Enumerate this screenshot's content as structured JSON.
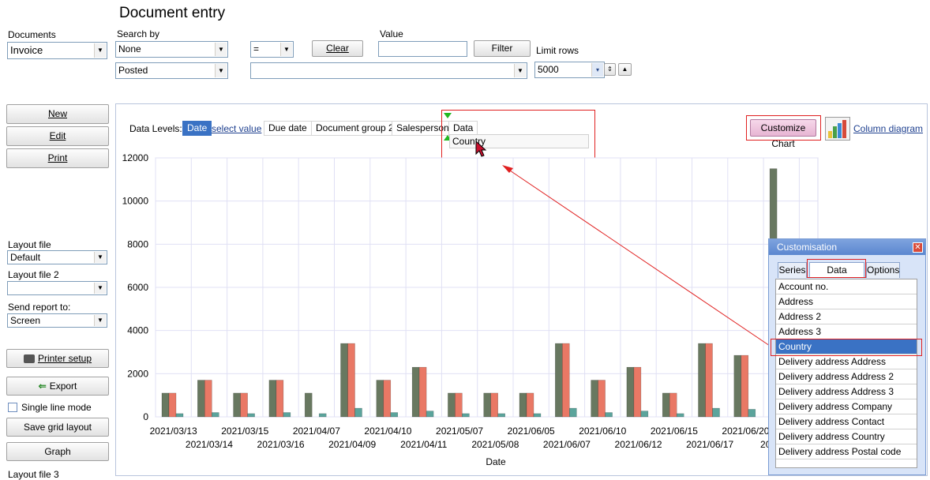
{
  "page_title": "Document entry",
  "documents": {
    "label": "Documents",
    "value": "Invoice"
  },
  "search": {
    "label": "Search by",
    "field": "None",
    "operator": "=",
    "clear_label": "Clear",
    "value_label": "Value",
    "value": "",
    "filter_label": "Filter",
    "status": "Posted",
    "second_value": "",
    "limit_label": "Limit rows",
    "limit_value": "5000"
  },
  "left_buttons": {
    "new": "New",
    "edit": "Edit",
    "print": "Print"
  },
  "layout": {
    "layout_file_label": "Layout file",
    "layout_file_value": "Default",
    "layout_file2_label": "Layout file 2",
    "layout_file2_value": "",
    "send_report_label": "Send report to:",
    "send_report_value": "Screen",
    "printer_setup": "Printer setup",
    "export": "Export",
    "single_line_mode": "Single line mode",
    "save_grid_layout": "Save grid layout",
    "graph": "Graph",
    "layout_file3_label": "Layout file 3"
  },
  "data_levels": {
    "label": "Data Levels:",
    "items": [
      "Date",
      "select value",
      "Due date",
      "Document group 2",
      "Salesperson",
      "Data"
    ],
    "drag_item": "Country"
  },
  "customize_chart_label": "Customize Chart",
  "column_diagram_label": "Column diagram",
  "customisation": {
    "title": "Customisation",
    "tabs": [
      "Series",
      "Data Groups",
      "Options"
    ],
    "items": [
      "Account no.",
      "Address",
      "Address 2",
      "Address 3",
      "Country",
      "Delivery address Address",
      "Delivery address Address 2",
      "Delivery address Address 3",
      "Delivery address Company",
      "Delivery address Contact",
      "Delivery address Country",
      "Delivery address Postal code"
    ],
    "selected_index": 4
  },
  "colors": {
    "series1": "#687860",
    "series2": "#e97865",
    "series3": "#5ba49c",
    "selection": "#3a72c4",
    "highlight": "#e02020"
  },
  "chart_data": {
    "type": "bar",
    "xlabel": "Date",
    "ylabel": "",
    "ylim": [
      0,
      12000
    ],
    "yticks": [
      0,
      2000,
      4000,
      6000,
      8000,
      10000,
      12000
    ],
    "categories": [
      "2021/03/13",
      "2021/03/14",
      "2021/03/15",
      "2021/03/16",
      "2021/04/07",
      "2021/04/09",
      "2021/04/10",
      "2021/04/11",
      "2021/05/07",
      "2021/05/08",
      "2021/06/05",
      "2021/06/07",
      "2021/06/10",
      "2021/06/12",
      "2021/06/15",
      "2021/06/17",
      "2021/06/20",
      "2021/06/2"
    ],
    "series": [
      {
        "values": [
          1100,
          1700,
          1100,
          1700,
          1100,
          3400,
          1700,
          2300,
          1100,
          1100,
          1100,
          3400,
          1700,
          2300,
          1100,
          3400,
          2850,
          11500
        ]
      },
      {
        "values": [
          1100,
          1700,
          1100,
          1700,
          0,
          3400,
          1700,
          2300,
          1100,
          1100,
          1100,
          3400,
          1700,
          2300,
          1100,
          3400,
          2850,
          0
        ]
      },
      {
        "values": [
          150,
          200,
          150,
          200,
          150,
          400,
          200,
          270,
          150,
          150,
          150,
          400,
          200,
          270,
          150,
          400,
          350,
          0
        ]
      }
    ]
  }
}
